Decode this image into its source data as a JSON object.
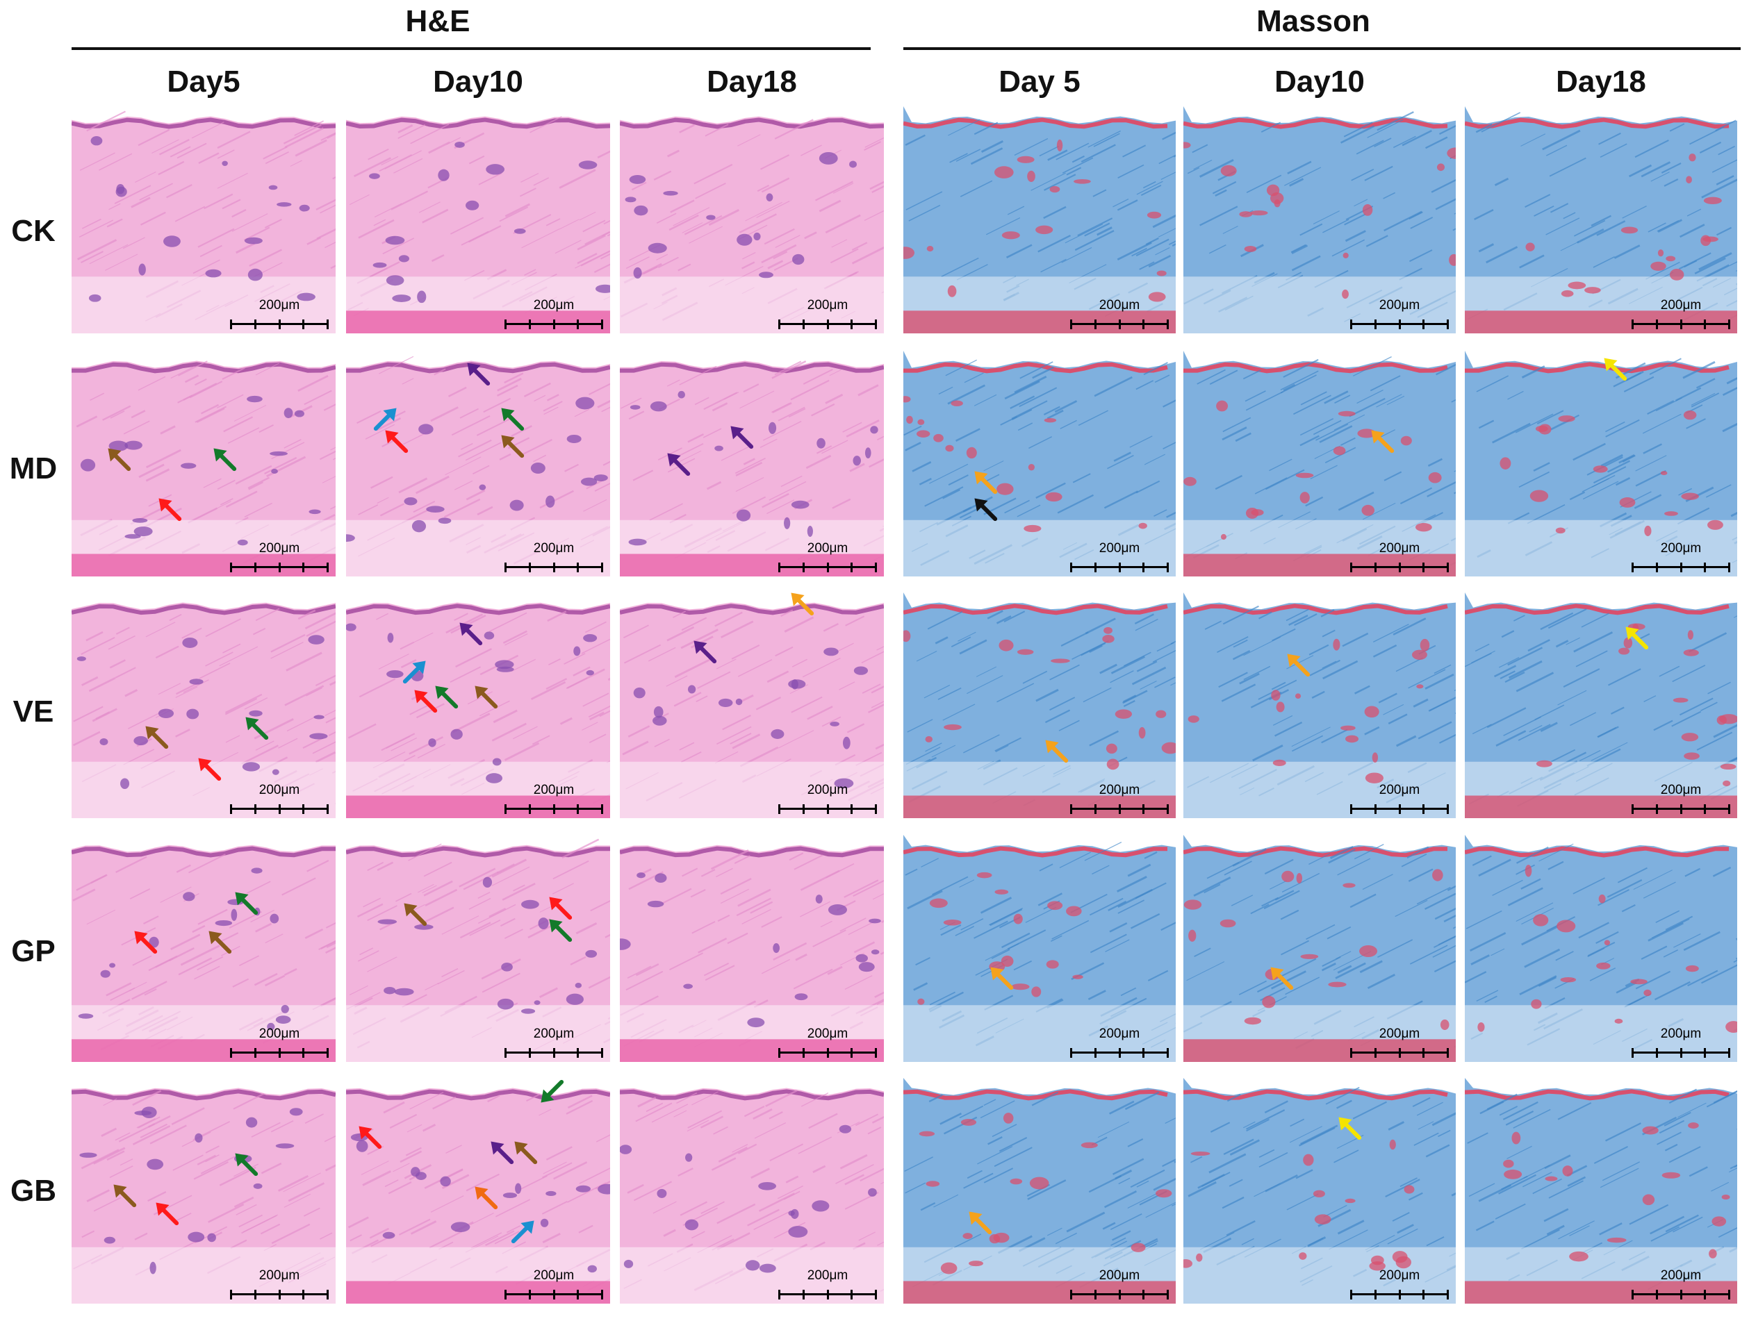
{
  "groups": [
    {
      "title": "H&E"
    },
    {
      "title": "Masson"
    }
  ],
  "columns": [
    {
      "label": "Day5",
      "stain": "he"
    },
    {
      "label": "Day10",
      "stain": "he"
    },
    {
      "label": "Day18",
      "stain": "he"
    },
    {
      "label": "Day 5",
      "stain": "masson"
    },
    {
      "label": "Day10",
      "stain": "masson"
    },
    {
      "label": "Day18",
      "stain": "masson"
    }
  ],
  "rows": [
    {
      "label": "CK"
    },
    {
      "label": "MD"
    },
    {
      "label": "VE"
    },
    {
      "label": "GP"
    },
    {
      "label": "GB"
    }
  ],
  "scale_bar_label": "200μm",
  "colors": {
    "he_background": "#f2b4dc",
    "he_fiber": "#e48fcc",
    "he_nuclei": "#8a4fb0",
    "masson_background": "#7fb0de",
    "masson_fiber": "#3f86c8",
    "masson_red": "#d8506e",
    "arrow_red": "#ff1a1a",
    "arrow_green": "#137a2a",
    "arrow_brown": "#8b5a1e",
    "arrow_purple": "#5a1f8a",
    "arrow_blue": "#1a90d0",
    "arrow_orange": "#f5a21c",
    "arrow_darkorange": "#f06a12",
    "arrow_yellow": "#f5e400",
    "arrow_black": "#111111"
  },
  "annotation_arrows": [
    {
      "row": 1,
      "col": 0,
      "color": "arrow_brown"
    },
    {
      "row": 1,
      "col": 0,
      "color": "arrow_green"
    },
    {
      "row": 1,
      "col": 0,
      "color": "arrow_red"
    },
    {
      "row": 1,
      "col": 1,
      "color": "arrow_purple"
    },
    {
      "row": 1,
      "col": 1,
      "color": "arrow_blue"
    },
    {
      "row": 1,
      "col": 1,
      "color": "arrow_red"
    },
    {
      "row": 1,
      "col": 1,
      "color": "arrow_green"
    },
    {
      "row": 1,
      "col": 1,
      "color": "arrow_brown"
    },
    {
      "row": 1,
      "col": 2,
      "color": "arrow_purple"
    },
    {
      "row": 1,
      "col": 2,
      "color": "arrow_purple"
    },
    {
      "row": 1,
      "col": 3,
      "color": "arrow_orange"
    },
    {
      "row": 1,
      "col": 3,
      "color": "arrow_black"
    },
    {
      "row": 1,
      "col": 4,
      "color": "arrow_orange"
    },
    {
      "row": 1,
      "col": 5,
      "color": "arrow_yellow"
    },
    {
      "row": 2,
      "col": 0,
      "color": "arrow_brown"
    },
    {
      "row": 2,
      "col": 0,
      "color": "arrow_green"
    },
    {
      "row": 2,
      "col": 0,
      "color": "arrow_red"
    },
    {
      "row": 2,
      "col": 1,
      "color": "arrow_purple"
    },
    {
      "row": 2,
      "col": 1,
      "color": "arrow_blue"
    },
    {
      "row": 2,
      "col": 1,
      "color": "arrow_red"
    },
    {
      "row": 2,
      "col": 1,
      "color": "arrow_green"
    },
    {
      "row": 2,
      "col": 1,
      "color": "arrow_brown"
    },
    {
      "row": 2,
      "col": 2,
      "color": "arrow_orange"
    },
    {
      "row": 2,
      "col": 2,
      "color": "arrow_purple"
    },
    {
      "row": 2,
      "col": 3,
      "color": "arrow_orange"
    },
    {
      "row": 2,
      "col": 4,
      "color": "arrow_orange"
    },
    {
      "row": 2,
      "col": 5,
      "color": "arrow_yellow"
    },
    {
      "row": 3,
      "col": 0,
      "color": "arrow_green"
    },
    {
      "row": 3,
      "col": 0,
      "color": "arrow_red"
    },
    {
      "row": 3,
      "col": 0,
      "color": "arrow_brown"
    },
    {
      "row": 3,
      "col": 1,
      "color": "arrow_brown"
    },
    {
      "row": 3,
      "col": 1,
      "color": "arrow_red"
    },
    {
      "row": 3,
      "col": 1,
      "color": "arrow_green"
    },
    {
      "row": 3,
      "col": 3,
      "color": "arrow_orange"
    },
    {
      "row": 3,
      "col": 4,
      "color": "arrow_orange"
    },
    {
      "row": 4,
      "col": 0,
      "color": "arrow_green"
    },
    {
      "row": 4,
      "col": 0,
      "color": "arrow_brown"
    },
    {
      "row": 4,
      "col": 0,
      "color": "arrow_red"
    },
    {
      "row": 4,
      "col": 1,
      "color": "arrow_green"
    },
    {
      "row": 4,
      "col": 1,
      "color": "arrow_red"
    },
    {
      "row": 4,
      "col": 1,
      "color": "arrow_purple"
    },
    {
      "row": 4,
      "col": 1,
      "color": "arrow_brown"
    },
    {
      "row": 4,
      "col": 1,
      "color": "arrow_darkorange"
    },
    {
      "row": 4,
      "col": 1,
      "color": "arrow_blue"
    },
    {
      "row": 4,
      "col": 3,
      "color": "arrow_orange"
    },
    {
      "row": 4,
      "col": 4,
      "color": "arrow_yellow"
    }
  ]
}
